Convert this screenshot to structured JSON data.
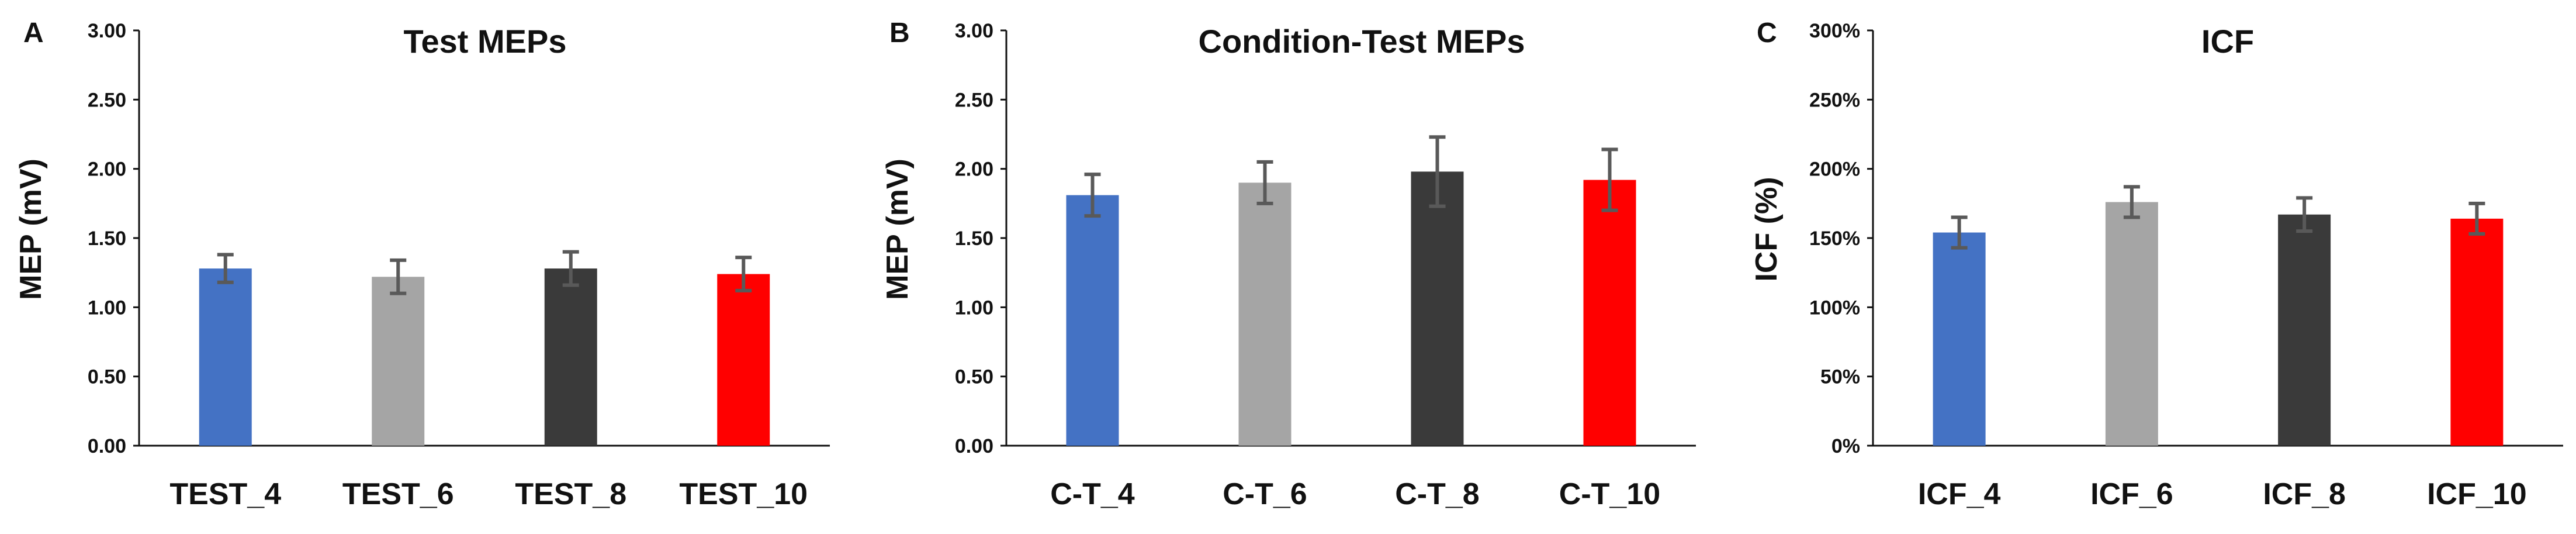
{
  "chart_data": [
    {
      "type": "bar",
      "panel": "A",
      "title": "Test MEPs",
      "xlabel": "",
      "ylabel": "MEP (mV)",
      "ylim": [
        0,
        3
      ],
      "yticks": [
        "0.00",
        "0.50",
        "1.00",
        "1.50",
        "2.00",
        "2.50",
        "3.00"
      ],
      "categories": [
        "TEST_4",
        "TEST_6",
        "TEST_8",
        "TEST_10"
      ],
      "values": [
        1.28,
        1.22,
        1.28,
        1.24
      ],
      "errors": [
        0.1,
        0.12,
        0.12,
        0.12
      ],
      "colors": [
        "#4472c4",
        "#a5a5a5",
        "#3a3a3a",
        "#ff0000"
      ],
      "grid": false
    },
    {
      "type": "bar",
      "panel": "B",
      "title": "Condition-Test  MEPs",
      "xlabel": "",
      "ylabel": "MEP (mV)",
      "ylim": [
        0,
        3
      ],
      "yticks": [
        "0.00",
        "0.50",
        "1.00",
        "1.50",
        "2.00",
        "2.50",
        "3.00"
      ],
      "categories": [
        "C-T_4",
        "C-T_6",
        "C-T_8",
        "C-T_10"
      ],
      "values": [
        1.81,
        1.9,
        1.98,
        1.92
      ],
      "errors": [
        0.15,
        0.15,
        0.25,
        0.22
      ],
      "colors": [
        "#4472c4",
        "#a5a5a5",
        "#3a3a3a",
        "#ff0000"
      ],
      "grid": false
    },
    {
      "type": "bar",
      "panel": "C",
      "title": "ICF",
      "xlabel": "",
      "ylabel": "ICF (%)",
      "ylim": [
        0,
        300
      ],
      "yticks": [
        "0%",
        "50%",
        "100%",
        "150%",
        "200%",
        "250%",
        "300%"
      ],
      "categories": [
        "ICF_4",
        "ICF_6",
        "ICF_8",
        "ICF_10"
      ],
      "values": [
        154,
        176,
        167,
        164
      ],
      "errors": [
        11,
        11,
        12,
        11
      ],
      "colors": [
        "#4472c4",
        "#a5a5a5",
        "#3a3a3a",
        "#ff0000"
      ],
      "grid": false
    }
  ]
}
